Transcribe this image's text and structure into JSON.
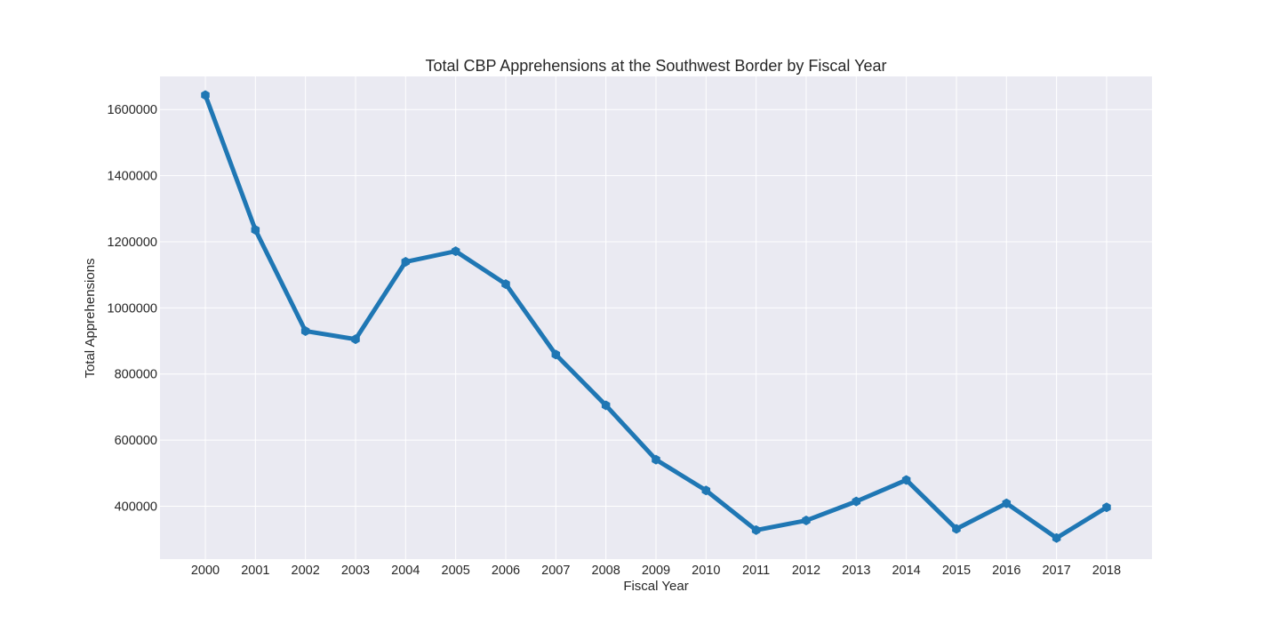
{
  "chart_data": {
    "type": "line",
    "title": "Total CBP Apprehensions at the Southwest Border by Fiscal Year",
    "xlabel": "Fiscal Year",
    "ylabel": "Total Apprehensions",
    "x": [
      "2000",
      "2001",
      "2002",
      "2003",
      "2004",
      "2005",
      "2006",
      "2007",
      "2008",
      "2009",
      "2010",
      "2011",
      "2012",
      "2013",
      "2014",
      "2015",
      "2016",
      "2017",
      "2018"
    ],
    "series": [
      {
        "values": [
          1643679,
          1235718,
          929809,
          905065,
          1139282,
          1171396,
          1071972,
          858638,
          705005,
          540865,
          447731,
          327577,
          356873,
          414397,
          479371,
          331333,
          408870,
          303916,
          396579
        ]
      }
    ],
    "yticks": [
      "400000",
      "600000",
      "800000",
      "1000000",
      "1200000",
      "1400000",
      "1600000"
    ],
    "ylim": [
      240000,
      1700000
    ],
    "grid": true,
    "colors": {
      "plot_background": "#eaeaf2",
      "series": "#1f77b4",
      "grid": "#ffffff"
    }
  }
}
